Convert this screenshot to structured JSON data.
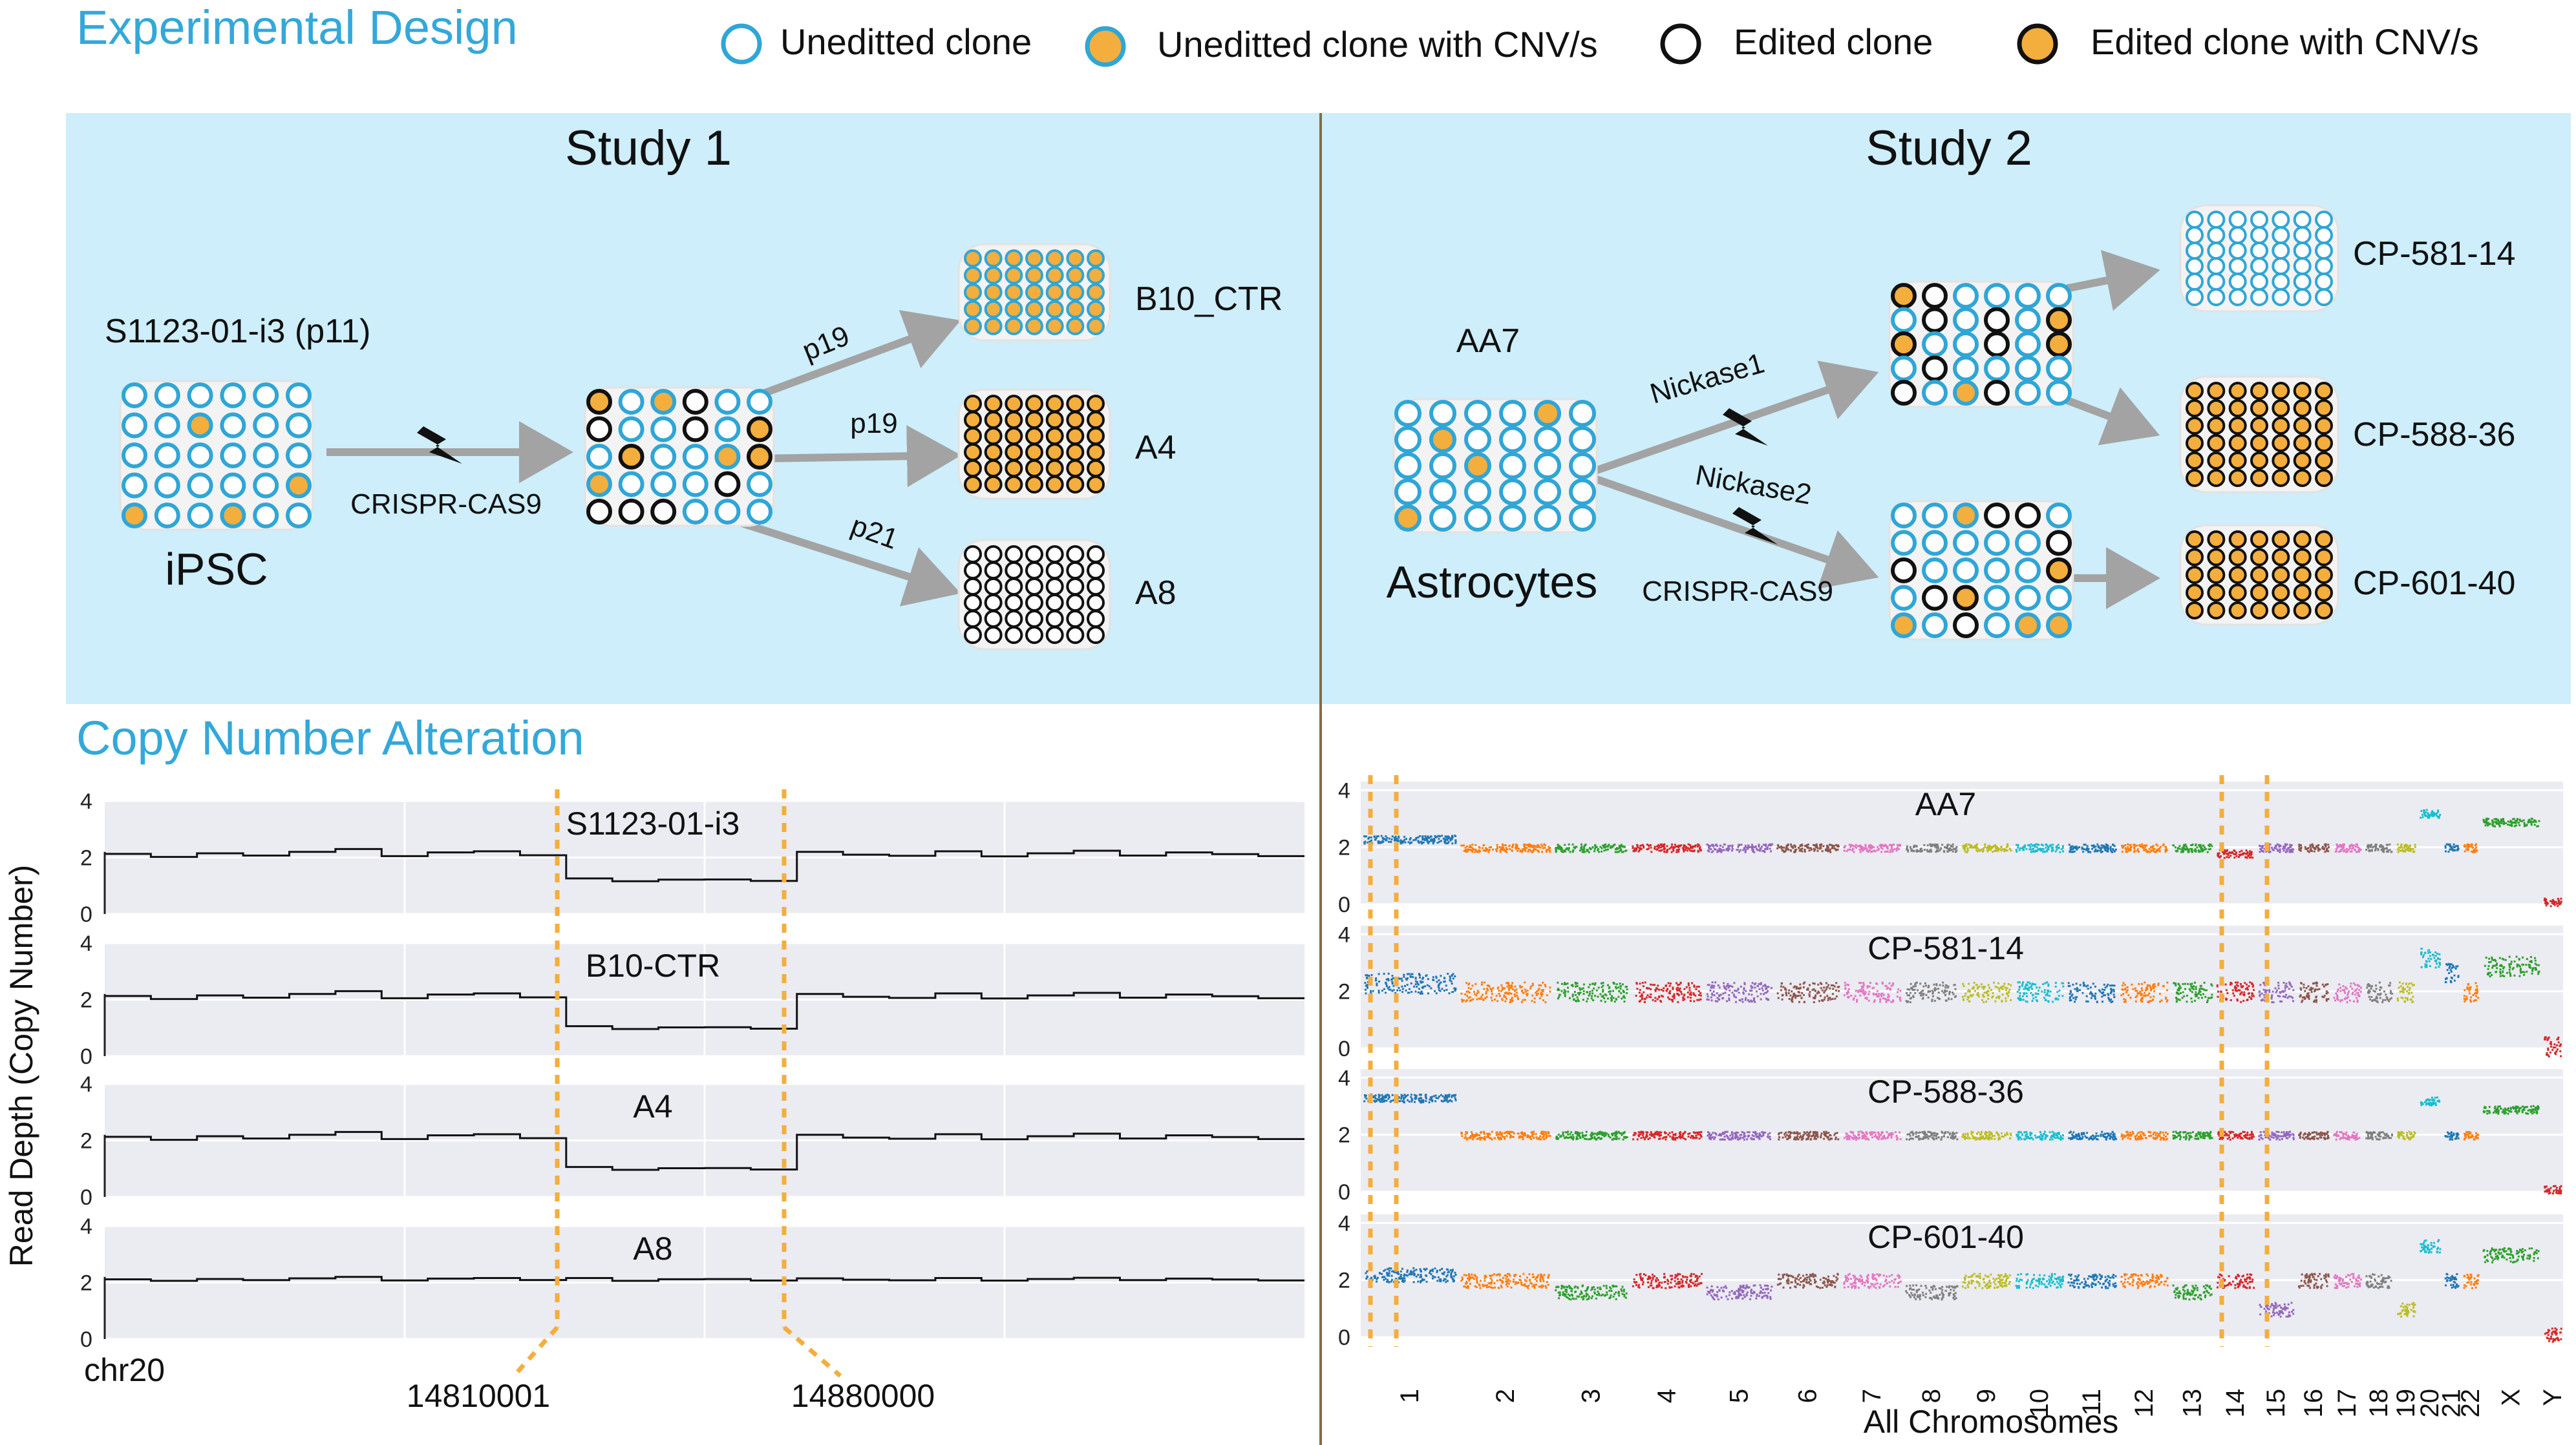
{
  "headers": {
    "design": "Experimental Design",
    "cna": "Copy Number Alteration"
  },
  "legend": [
    {
      "label": "Uneditted clone",
      "ring": "#2fa6d6",
      "fill": "#ffffff"
    },
    {
      "label": "Uneditted clone with CNV/s",
      "ring": "#2fa6d6",
      "fill": "#f4ae3d"
    },
    {
      "label": "Edited clone",
      "ring": "#111111",
      "fill": "#ffffff"
    },
    {
      "label": "Edited clone with CNV/s",
      "ring": "#111111",
      "fill": "#f4ae3d"
    }
  ],
  "colors": {
    "panel_bg": "#cdeefa",
    "accent": "#33a8d9",
    "orange": "#f4ae3d",
    "blue_ring": "#2fa6d6",
    "arrow": "#a3a3a3",
    "plot_bg": "#ebebf2",
    "divider": "#8b6a3e"
  },
  "study1": {
    "title": "Study 1",
    "source_label": "S1123-01-i3 (p11)",
    "cell_type": "iPSC",
    "method": "CRISPR-CAS9",
    "outputs": [
      {
        "name": "B10_CTR",
        "passage": "p19"
      },
      {
        "name": "A4",
        "passage": "p19"
      },
      {
        "name": "A8",
        "passage": "p21"
      }
    ]
  },
  "study2": {
    "title": "Study 2",
    "source_label": "AA7",
    "cell_type": "Astrocytes",
    "methods": [
      "Nickase1",
      "Nickase2",
      "CRISPR-CAS9"
    ],
    "outputs": [
      "CP-581-14",
      "CP-588-36",
      "CP-601-40"
    ]
  },
  "cna_left": {
    "ylabel": "Read Depth (Copy Number)",
    "xstart": "chr20",
    "breakpoints": [
      "14810001",
      "14880000"
    ],
    "yticks": [
      "4",
      "2",
      "0"
    ],
    "tracks": [
      "S1123-01-i3",
      "B10-CTR",
      "A4",
      "A8"
    ]
  },
  "cna_right": {
    "xlabel": "All Chromosomes",
    "yticks": [
      "4",
      "2",
      "0"
    ],
    "tracks": [
      "AA7",
      "CP-581-14",
      "CP-588-36",
      "CP-601-40"
    ],
    "chromosomes": [
      "1",
      "2",
      "3",
      "4",
      "5",
      "6",
      "7",
      "8",
      "9",
      "10",
      "11",
      "12",
      "13",
      "14",
      "15",
      "16",
      "17",
      "18",
      "19",
      "20",
      "21",
      "22",
      "X",
      "Y"
    ]
  },
  "chart_data": [
    {
      "type": "line",
      "title": "",
      "xlabel": "chr20",
      "ylabel": "Read Depth (Copy Number)",
      "ylim": [
        0,
        4
      ],
      "series": [
        {
          "name": "S1123-01-i3",
          "baseline": 2.1,
          "region_level": 1.2
        },
        {
          "name": "B10-CTR",
          "baseline": 2.1,
          "region_level": 1.0
        },
        {
          "name": "A4",
          "baseline": 2.1,
          "region_level": 1.0
        },
        {
          "name": "A8",
          "baseline": 2.1,
          "region_level": 2.1
        }
      ]
    },
    {
      "type": "scatter",
      "title": "",
      "xlabel": "All Chromosomes",
      "ylim": [
        0,
        4
      ],
      "categories": [
        "1",
        "2",
        "3",
        "4",
        "5",
        "6",
        "7",
        "8",
        "9",
        "10",
        "11",
        "12",
        "13",
        "14",
        "15",
        "16",
        "17",
        "18",
        "19",
        "20",
        "21",
        "22",
        "X",
        "Y"
      ],
      "series": [
        {
          "name": "AA7",
          "values": [
            2.3,
            2,
            2,
            2,
            2,
            2,
            2,
            2,
            2,
            2,
            2,
            2,
            2,
            1.8,
            2,
            2,
            2,
            2,
            2,
            3.2,
            2,
            2,
            2.9,
            0.1
          ]
        },
        {
          "name": "CP-581-14",
          "values": [
            2.3,
            2,
            2,
            2,
            2,
            2,
            2,
            2,
            2,
            2,
            2,
            2,
            2,
            2,
            2,
            2,
            2,
            2,
            2,
            3.2,
            2.7,
            2,
            2.9,
            0.1
          ]
        },
        {
          "name": "CP-588-36",
          "values": [
            3.3,
            2,
            2,
            2,
            2,
            2,
            2,
            2,
            2,
            2,
            2,
            2,
            2,
            2,
            2,
            2,
            2,
            2,
            2,
            3.2,
            2,
            2,
            2.9,
            0.1
          ]
        },
        {
          "name": "CP-601-40",
          "values": [
            2.2,
            2,
            1.6,
            2,
            1.6,
            2,
            2,
            1.6,
            2,
            2,
            2,
            2,
            1.6,
            2,
            1.0,
            2,
            2,
            2,
            1.0,
            3.2,
            2,
            2,
            2.9,
            0.1
          ]
        }
      ]
    }
  ]
}
